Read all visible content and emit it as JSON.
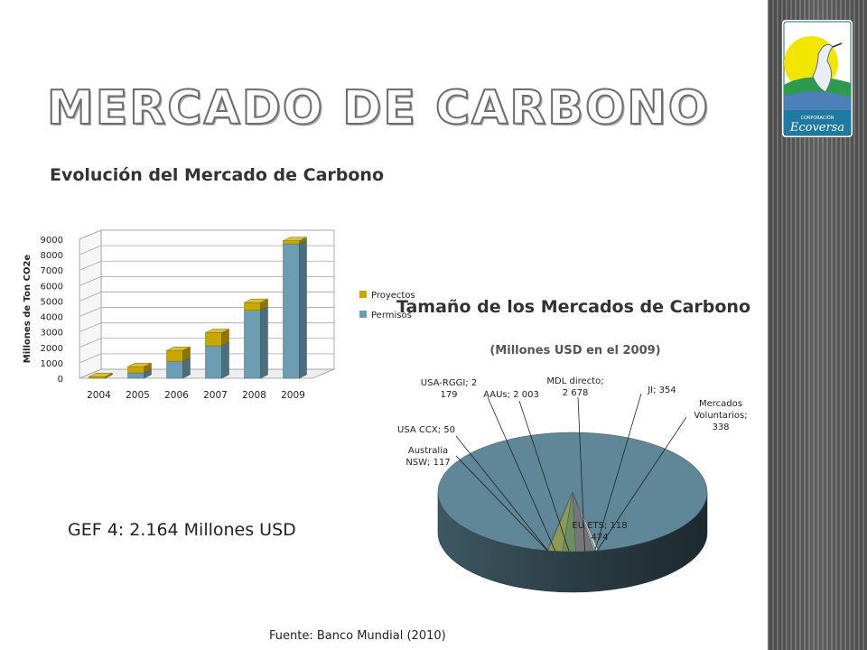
{
  "slide": {
    "title": "MERCADO DE CARBONO",
    "note": "GEF 4:  2.164 Millones USD",
    "source": "Fuente: Banco Mundial (2010)",
    "logo_text_small": "CORPORACIÓN",
    "logo_text": "Ecoversa"
  },
  "colors": {
    "proyectos": "#c8a800",
    "permisos": "#6c9db3",
    "pie_main": "#5f8798",
    "title_text": "#333333"
  },
  "chart_data": [
    {
      "type": "bar",
      "stacked": true,
      "three_d": true,
      "title": "Evolución del Mercado de Carbono",
      "xlabel": "",
      "ylabel": "Millones de Ton CO2e",
      "categories": [
        "2004",
        "2005",
        "2006",
        "2007",
        "2008",
        "2009"
      ],
      "yticks": [
        "0",
        "1000",
        "2000",
        "3000",
        "4000",
        "5000",
        "6000",
        "7000",
        "8000",
        "9000"
      ],
      "ylim": [
        0,
        9000
      ],
      "grid": true,
      "legend": "right",
      "series": [
        {
          "name": "Permisos",
          "values": [
            0,
            350,
            1100,
            2100,
            4400,
            8700
          ]
        },
        {
          "name": "Proyectos",
          "values": [
            100,
            400,
            700,
            850,
            500,
            200
          ]
        }
      ]
    },
    {
      "type": "pie",
      "three_d": true,
      "title": "Tamaño de los Mercados de Carbono",
      "subtitle": "(Millones USD en el 2009)",
      "slices": [
        {
          "label": "EU ETS; 118 474",
          "name": "EU ETS",
          "value": 118474
        },
        {
          "label": "Australia NSW; 117",
          "name": "Australia NSW",
          "value": 117
        },
        {
          "label": "USA CCX; 50",
          "name": "USA CCX",
          "value": 50
        },
        {
          "label": "USA-RGGI; 2 179",
          "name": "USA-RGGI",
          "value": 2179
        },
        {
          "label": "AAUs; 2 003",
          "name": "AAUs",
          "value": 2003
        },
        {
          "label": "MDL directo; 2 678",
          "name": "MDL directo",
          "value": 2678
        },
        {
          "label": "JI; 354",
          "name": "JI",
          "value": 354
        },
        {
          "label": "Mercados Voluntarios; 338",
          "name": "Mercados Voluntarios",
          "value": 338
        }
      ]
    }
  ]
}
